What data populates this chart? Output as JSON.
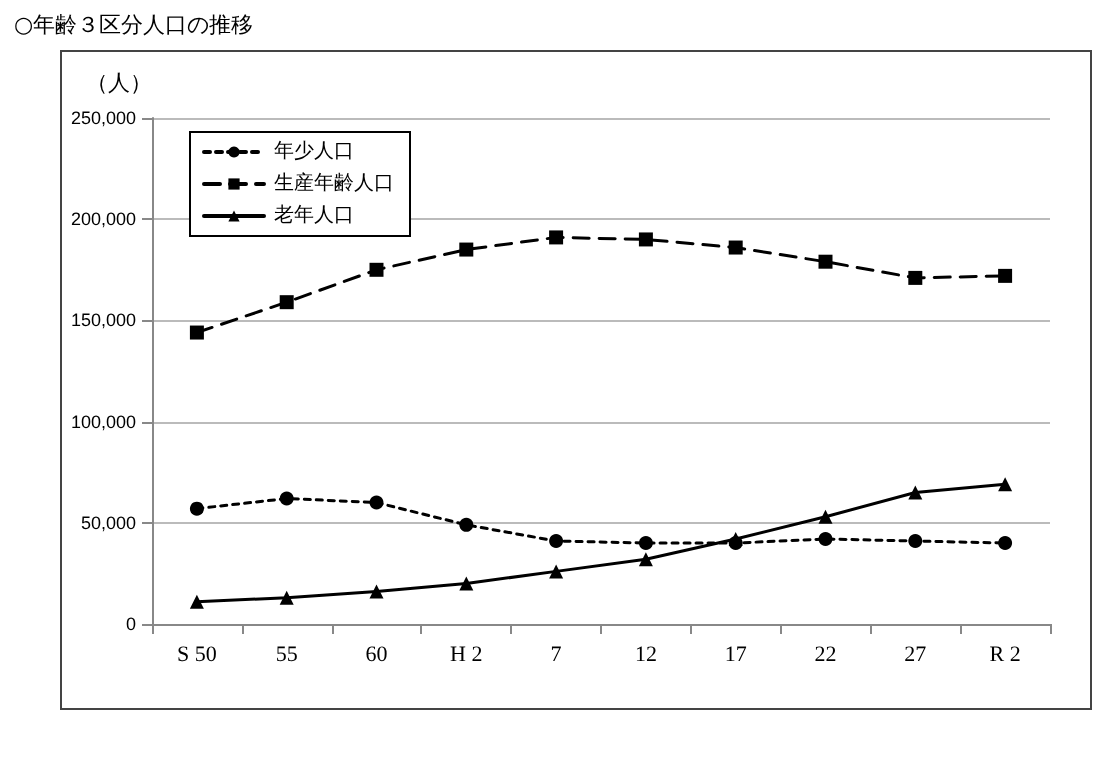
{
  "chart_data": {
    "type": "line",
    "title": "○年齢３区分人口の推移",
    "ylabel": "（人）",
    "categories": [
      "S 50",
      "55",
      "60",
      "H 2",
      "7",
      "12",
      "17",
      "22",
      "27",
      "R 2"
    ],
    "series": [
      {
        "name": "年少人口",
        "color": "#000000",
        "marker": "circle",
        "line_style": "dotted",
        "values": [
          57000,
          62000,
          60000,
          49000,
          41000,
          40000,
          40000,
          42000,
          41000,
          40000
        ]
      },
      {
        "name": "生産年齢人口",
        "color": "#000000",
        "marker": "square",
        "line_style": "dashed",
        "values": [
          144000,
          159000,
          175000,
          185000,
          191000,
          190000,
          186000,
          179000,
          171000,
          172000
        ]
      },
      {
        "name": "老年人口",
        "color": "#000000",
        "marker": "triangle",
        "line_style": "solid",
        "values": [
          11000,
          13000,
          16000,
          20000,
          26000,
          32000,
          42000,
          53000,
          65000,
          69000
        ]
      }
    ],
    "ylim": [
      0,
      250000
    ],
    "yticks": [
      0,
      {
        "value": 50000,
        "label": "50,000"
      },
      {
        "value": 100000,
        "label": "100,000"
      },
      {
        "value": 150000,
        "label": "150,000"
      },
      {
        "value": 200000,
        "label": "200,000"
      },
      {
        "value": 250000,
        "label": "250,000"
      }
    ],
    "grid": "y",
    "legend": "top left"
  }
}
